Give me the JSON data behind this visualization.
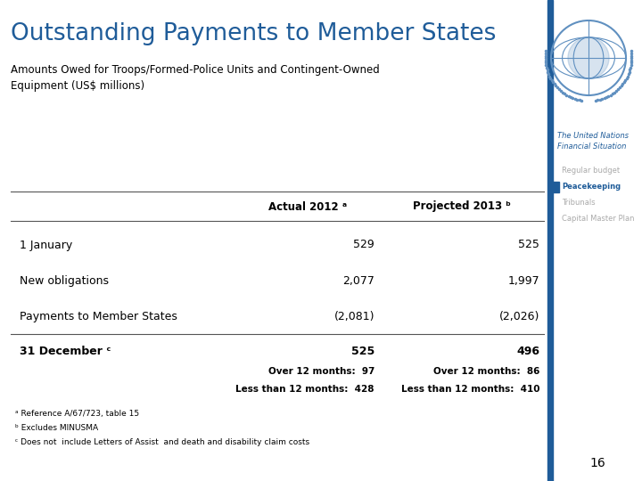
{
  "title": "Outstanding Payments to Member States",
  "subtitle": "Amounts Owed for Troops/Formed-Police Units and Contingent-Owned\nEquipment (US$ millions)",
  "title_color": "#1F5C99",
  "subtitle_color": "#000000",
  "col_headers": [
    "Actual 2012 ᵃ",
    "Projected 2013 ᵇ"
  ],
  "rows": [
    {
      "label": "1 January",
      "actual": "529",
      "projected": "525",
      "bold": false,
      "sub_lines": []
    },
    {
      "label": "New obligations",
      "actual": "2,077",
      "projected": "1,997",
      "bold": false,
      "sub_lines": []
    },
    {
      "label": "Payments to Member States",
      "actual": "(2,081)",
      "projected": "(2,026)",
      "bold": false,
      "sub_lines": []
    },
    {
      "label": "31 December ᶜ",
      "actual": "525",
      "projected": "496",
      "bold": true,
      "sub_lines": [
        {
          "label": "Over 12 months:  97",
          "label2": "Over 12 months:  86"
        },
        {
          "label": "Less than 12 months:  428",
          "label2": "Less than 12 months:  410"
        }
      ]
    }
  ],
  "footnotes": [
    "ᵃ Reference A/67/723, table 15",
    "ᵇ Excludes MINUSMA",
    "ᶜ Does not  include Letters of Assist  and death and disability claim costs"
  ],
  "sidebar_color": "#4472A4",
  "sidebar_active_color": "#1F5C99",
  "sidebar_labels": [
    "Regular budget",
    "Peacekeeping",
    "Tribunals",
    "Capital Master Plan"
  ],
  "sidebar_active": "Peacekeeping",
  "page_number": "16",
  "bg_color": "#FFFFFF",
  "line_color": "#555555",
  "un_logo_color": "#6090C0"
}
